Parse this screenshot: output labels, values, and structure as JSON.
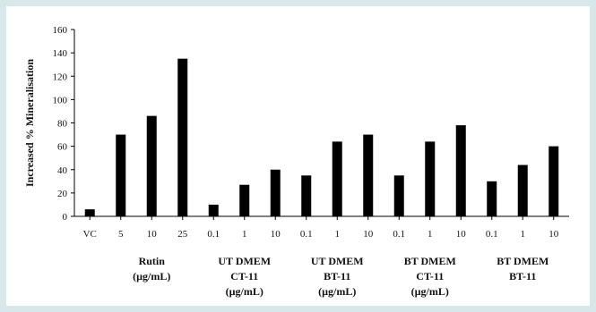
{
  "chart_data": {
    "type": "bar",
    "ylabel": "Increased % Mineralisation",
    "ylim": [
      0,
      160
    ],
    "y_ticks": [
      0,
      20,
      40,
      60,
      80,
      100,
      120,
      140,
      160
    ],
    "categories": [
      "VC",
      "5",
      "10",
      "25",
      "0.1",
      "1",
      "10",
      "0.1",
      "1",
      "10",
      "0.1",
      "1",
      "10",
      "0.1",
      "1",
      "10"
    ],
    "values": [
      6,
      70,
      86,
      135,
      10,
      27,
      40,
      35,
      64,
      70,
      35,
      64,
      78,
      30,
      44,
      60
    ],
    "bar_color": "#000000",
    "groups": [
      {
        "label_lines": [
          "Rutin",
          "(µg/mL)"
        ],
        "first": 1,
        "last": 3
      },
      {
        "label_lines": [
          "UT DMEM",
          "CT-11",
          "(µg/mL)"
        ],
        "first": 4,
        "last": 6
      },
      {
        "label_lines": [
          "UT DMEM",
          "BT-11",
          "(µg/mL)"
        ],
        "first": 7,
        "last": 9
      },
      {
        "label_lines": [
          "BT DMEM",
          "CT-11",
          "(µg/mL)"
        ],
        "first": 10,
        "last": 12
      },
      {
        "label_lines": [
          "BT DMEM",
          "BT-11"
        ],
        "first": 13,
        "last": 15
      }
    ]
  }
}
